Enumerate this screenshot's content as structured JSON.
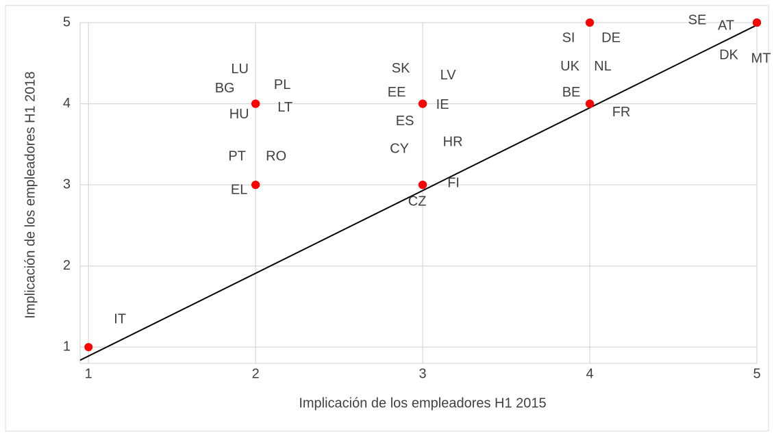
{
  "chart_data": {
    "type": "scatter",
    "xlabel": "Implicación de los empleadores H1 2015",
    "ylabel": "Implicación de los empleadores H1 2018",
    "xlim": [
      0.95,
      5
    ],
    "ylim": [
      0.8,
      5
    ],
    "xticks": [
      1,
      2,
      3,
      4,
      5
    ],
    "yticks": [
      1,
      2,
      3,
      4,
      5
    ],
    "grid": true,
    "color": "#ff0000",
    "points": [
      {
        "name": "LU",
        "x": 2,
        "y": 4
      },
      {
        "name": "BG",
        "x": 2,
        "y": 4
      },
      {
        "name": "PL",
        "x": 2,
        "y": 4
      },
      {
        "name": "HU",
        "x": 2,
        "y": 4
      },
      {
        "name": "LT",
        "x": 2,
        "y": 4
      },
      {
        "name": "PT",
        "x": 2,
        "y": 3
      },
      {
        "name": "RO",
        "x": 2,
        "y": 3
      },
      {
        "name": "EL",
        "x": 2,
        "y": 3
      },
      {
        "name": "SK",
        "x": 3,
        "y": 4
      },
      {
        "name": "LV",
        "x": 3,
        "y": 4
      },
      {
        "name": "EE",
        "x": 3,
        "y": 4
      },
      {
        "name": "IE",
        "x": 3,
        "y": 4
      },
      {
        "name": "ES",
        "x": 3,
        "y": 4
      },
      {
        "name": "CY",
        "x": 3,
        "y": 3
      },
      {
        "name": "HR",
        "x": 3,
        "y": 3
      },
      {
        "name": "FI",
        "x": 3,
        "y": 3
      },
      {
        "name": "CZ",
        "x": 3,
        "y": 3
      },
      {
        "name": "SI",
        "x": 4,
        "y": 5
      },
      {
        "name": "DE",
        "x": 4,
        "y": 5
      },
      {
        "name": "UK",
        "x": 4,
        "y": 4
      },
      {
        "name": "NL",
        "x": 4,
        "y": 4
      },
      {
        "name": "BE",
        "x": 4,
        "y": 4
      },
      {
        "name": "FR",
        "x": 4,
        "y": 4
      },
      {
        "name": "SE",
        "x": 5,
        "y": 5
      },
      {
        "name": "AT",
        "x": 5,
        "y": 5
      },
      {
        "name": "DK",
        "x": 5,
        "y": 5
      },
      {
        "name": "MT",
        "x": 5,
        "y": 5
      },
      {
        "name": "IT",
        "x": 1,
        "y": 1
      }
    ],
    "trendline": {
      "intercept": -0.13,
      "slope": 1.02
    }
  }
}
